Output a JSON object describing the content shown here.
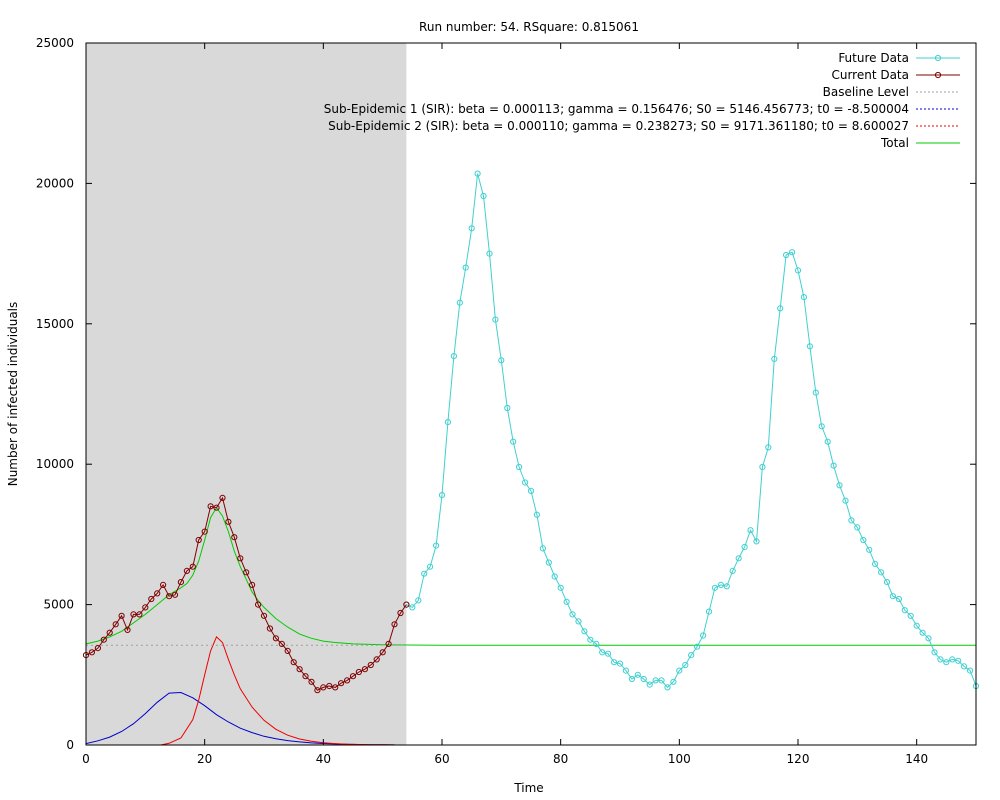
{
  "chart_data": {
    "type": "line",
    "title": "Run number: 54. RSquare: 0.815061",
    "xlabel": "Time",
    "ylabel": "Number of infected individuals",
    "xlim": [
      0,
      150
    ],
    "ylim": [
      0,
      25000
    ],
    "x_ticks": [
      0,
      20,
      40,
      60,
      80,
      100,
      120,
      140
    ],
    "y_ticks": [
      0,
      5000,
      10000,
      15000,
      20000,
      25000
    ],
    "grid": false,
    "legend_position": "top-right",
    "shaded_region": {
      "x_start": 0,
      "x_end": 54,
      "color": "#d9d9d9"
    },
    "series": [
      {
        "name": "Future Data",
        "color": "#40d0d0",
        "style": "line+circle",
        "x": [
          54,
          55,
          56,
          57,
          58,
          59,
          60,
          61,
          62,
          63,
          64,
          65,
          66,
          67,
          68,
          69,
          70,
          71,
          72,
          73,
          74,
          75,
          76,
          77,
          78,
          79,
          80,
          81,
          82,
          83,
          84,
          85,
          86,
          87,
          88,
          89,
          90,
          91,
          92,
          93,
          94,
          95,
          96,
          97,
          98,
          99,
          100,
          101,
          102,
          103,
          104,
          105,
          106,
          107,
          108,
          109,
          110,
          111,
          112,
          113,
          114,
          115,
          116,
          117,
          118,
          119,
          120,
          121,
          122,
          123,
          124,
          125,
          126,
          127,
          128,
          129,
          130,
          131,
          132,
          133,
          134,
          135,
          136,
          137,
          138,
          139,
          140,
          141,
          142,
          143,
          144,
          145,
          146,
          147,
          148,
          149,
          150
        ],
        "y": [
          5000,
          4900,
          5150,
          6100,
          6350,
          7100,
          8900,
          11500,
          13850,
          15750,
          17000,
          18400,
          20350,
          19550,
          17500,
          15150,
          13700,
          12000,
          10800,
          9900,
          9350,
          9050,
          8200,
          7000,
          6500,
          6000,
          5600,
          5100,
          4650,
          4400,
          4050,
          3750,
          3600,
          3300,
          3250,
          2950,
          2900,
          2650,
          2350,
          2500,
          2350,
          2150,
          2300,
          2300,
          2050,
          2250,
          2650,
          2850,
          3200,
          3500,
          3900,
          4750,
          5600,
          5700,
          5650,
          6200,
          6650,
          7050,
          7650,
          7250,
          9900,
          10600,
          13750,
          15550,
          17450,
          17550,
          16900,
          15950,
          14200,
          12550,
          11350,
          10800,
          9950,
          9250,
          8700,
          8000,
          7750,
          7300,
          6950,
          6450,
          6150,
          5800,
          5300,
          5200,
          4800,
          4600,
          4250,
          4000,
          3800,
          3300,
          3050,
          2950,
          3050,
          3000,
          2800,
          2650,
          2100
        ]
      },
      {
        "name": "Current Data",
        "color": "#800000",
        "style": "line+circle",
        "x": [
          0,
          1,
          2,
          3,
          4,
          5,
          6,
          7,
          8,
          9,
          10,
          11,
          12,
          13,
          14,
          15,
          16,
          17,
          18,
          19,
          20,
          21,
          22,
          23,
          24,
          25,
          26,
          27,
          28,
          29,
          30,
          31,
          32,
          33,
          34,
          35,
          36,
          37,
          38,
          39,
          40,
          41,
          42,
          43,
          44,
          45,
          46,
          47,
          48,
          49,
          50,
          51,
          52,
          53,
          54
        ],
        "y": [
          3200,
          3300,
          3450,
          3750,
          4000,
          4300,
          4600,
          4100,
          4650,
          4650,
          4900,
          5200,
          5400,
          5700,
          5300,
          5350,
          5800,
          6200,
          6350,
          7300,
          7600,
          8500,
          8450,
          8800,
          7950,
          7400,
          6650,
          6150,
          5700,
          5000,
          4600,
          4150,
          3800,
          3600,
          3350,
          2950,
          2700,
          2450,
          2250,
          1950,
          2050,
          2100,
          2050,
          2200,
          2300,
          2450,
          2600,
          2700,
          2850,
          3050,
          3300,
          3600,
          4300,
          4700,
          5000
        ]
      },
      {
        "name": "Baseline Level",
        "color": "#a0a0a0",
        "style": "dotted",
        "x": [
          0,
          54
        ],
        "y": [
          3550,
          3550
        ]
      },
      {
        "name": "Sub-Epidemic 1 (SIR): beta = 0.000113; gamma = 0.156476; S0 = 5146.456773; t0 = -8.500004",
        "color": "#0000cc",
        "style": "line",
        "x": [
          0,
          2,
          4,
          6,
          8,
          10,
          12,
          14,
          16,
          18,
          20,
          22,
          24,
          26,
          28,
          30,
          32,
          34,
          36,
          38,
          40,
          42,
          44,
          46,
          48,
          50,
          52
        ],
        "y": [
          50,
          150,
          280,
          480,
          760,
          1120,
          1520,
          1850,
          1870,
          1680,
          1400,
          1080,
          820,
          600,
          440,
          310,
          220,
          155,
          110,
          75,
          55,
          38,
          26,
          18,
          12,
          8,
          5
        ]
      },
      {
        "name": "Sub-Epidemic 2 (SIR): beta = 0.000110; gamma = 0.238273; S0 = 9171.361180; t0 = 8.600027",
        "color": "#ee0000",
        "style": "line",
        "x": [
          12.6,
          14,
          16,
          18,
          19,
          20,
          21,
          22,
          23,
          24,
          25,
          26,
          28,
          30,
          32,
          34,
          36,
          38,
          40,
          42,
          44,
          46,
          48,
          50,
          52
        ],
        "y": [
          0,
          60,
          250,
          900,
          1600,
          2500,
          3350,
          3850,
          3650,
          3050,
          2500,
          2000,
          1350,
          880,
          560,
          350,
          215,
          130,
          80,
          50,
          30,
          18,
          11,
          7,
          4
        ]
      },
      {
        "name": "Total",
        "color": "#00cc00",
        "style": "line",
        "x": [
          0,
          2,
          4,
          6,
          8,
          10,
          12,
          14,
          16,
          17,
          18,
          19,
          20,
          21,
          22,
          23,
          24,
          25,
          26,
          27,
          28,
          29,
          30,
          32,
          34,
          36,
          38,
          40,
          42,
          45,
          50,
          54,
          60,
          80,
          100,
          120,
          140,
          150
        ],
        "y": [
          3600,
          3700,
          3850,
          4050,
          4350,
          4650,
          5000,
          5350,
          5600,
          5750,
          6050,
          6550,
          7300,
          8100,
          8450,
          8150,
          7600,
          6900,
          6350,
          5900,
          5450,
          5150,
          4900,
          4500,
          4200,
          3950,
          3800,
          3700,
          3650,
          3600,
          3570,
          3560,
          3550,
          3550,
          3550,
          3550,
          3550,
          3550
        ]
      }
    ]
  }
}
